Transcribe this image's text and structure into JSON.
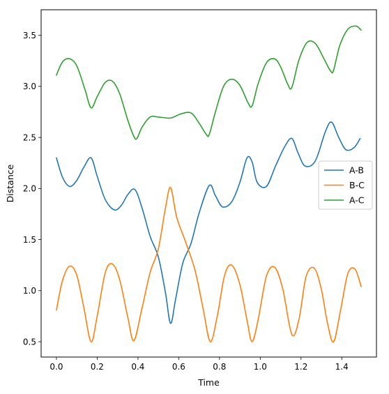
{
  "chart_data": {
    "type": "line",
    "title": "",
    "xlabel": "Time",
    "ylabel": "Distance",
    "xlim": [
      -0.075,
      1.57
    ],
    "ylim": [
      0.35,
      3.75
    ],
    "xticks": [
      0.0,
      0.2,
      0.4,
      0.6,
      0.8,
      1.0,
      1.2,
      1.4
    ],
    "xtick_labels": [
      "0.0",
      "0.2",
      "0.4",
      "0.6",
      "0.8",
      "1.0",
      "1.2",
      "1.4"
    ],
    "yticks": [
      0.5,
      1.0,
      1.5,
      2.0,
      2.5,
      3.0,
      3.5
    ],
    "ytick_labels": [
      "0.5",
      "1.0",
      "1.5",
      "2.0",
      "2.5",
      "3.0",
      "3.5"
    ],
    "grid": false,
    "legend_position": "center-right",
    "series": [
      {
        "name": "A-B",
        "color": "#1f77b4",
        "x": [
          0.0,
          0.03,
          0.065,
          0.1,
          0.135,
          0.17,
          0.2,
          0.24,
          0.285,
          0.32,
          0.35,
          0.385,
          0.42,
          0.46,
          0.5,
          0.535,
          0.56,
          0.585,
          0.62,
          0.66,
          0.7,
          0.75,
          0.78,
          0.815,
          0.86,
          0.9,
          0.935,
          0.96,
          0.985,
          1.03,
          1.075,
          1.12,
          1.155,
          1.185,
          1.22,
          1.27,
          1.32,
          1.35,
          1.385,
          1.42,
          1.46,
          1.49
        ],
        "y": [
          2.3,
          2.11,
          2.02,
          2.08,
          2.21,
          2.3,
          2.12,
          1.89,
          1.79,
          1.84,
          1.94,
          1.99,
          1.81,
          1.53,
          1.33,
          0.98,
          0.68,
          0.92,
          1.27,
          1.46,
          1.76,
          2.03,
          1.93,
          1.82,
          1.87,
          2.06,
          2.3,
          2.26,
          2.06,
          2.02,
          2.22,
          2.41,
          2.49,
          2.35,
          2.22,
          2.27,
          2.56,
          2.65,
          2.5,
          2.38,
          2.4,
          2.49
        ]
      },
      {
        "name": "B-C",
        "color": "#ff7f0e",
        "x": [
          0.0,
          0.03,
          0.065,
          0.1,
          0.135,
          0.17,
          0.2,
          0.24,
          0.275,
          0.31,
          0.35,
          0.38,
          0.42,
          0.46,
          0.5,
          0.535,
          0.56,
          0.59,
          0.635,
          0.68,
          0.72,
          0.755,
          0.79,
          0.825,
          0.86,
          0.9,
          0.935,
          0.96,
          0.99,
          1.03,
          1.07,
          1.11,
          1.155,
          1.19,
          1.225,
          1.265,
          1.3,
          1.33,
          1.36,
          1.395,
          1.43,
          1.465,
          1.495
        ],
        "y": [
          0.81,
          1.1,
          1.24,
          1.15,
          0.83,
          0.5,
          0.75,
          1.18,
          1.26,
          1.11,
          0.74,
          0.51,
          0.83,
          1.18,
          1.41,
          1.81,
          2.01,
          1.72,
          1.47,
          1.2,
          0.82,
          0.5,
          0.76,
          1.15,
          1.25,
          1.06,
          0.71,
          0.5,
          0.72,
          1.14,
          1.23,
          1.02,
          0.57,
          0.72,
          1.14,
          1.22,
          1.01,
          0.68,
          0.5,
          0.82,
          1.17,
          1.21,
          1.04
        ]
      },
      {
        "name": "A-C",
        "color": "#2ca02c",
        "x": [
          0.0,
          0.03,
          0.065,
          0.1,
          0.14,
          0.17,
          0.2,
          0.24,
          0.275,
          0.31,
          0.35,
          0.38,
          0.395,
          0.42,
          0.46,
          0.5,
          0.56,
          0.61,
          0.66,
          0.7,
          0.735,
          0.75,
          0.78,
          0.82,
          0.86,
          0.9,
          0.94,
          0.96,
          0.99,
          1.03,
          1.07,
          1.1,
          1.135,
          1.155,
          1.19,
          1.23,
          1.27,
          1.31,
          1.345,
          1.36,
          1.39,
          1.43,
          1.47,
          1.495
        ],
        "y": [
          3.11,
          3.24,
          3.27,
          3.2,
          2.97,
          2.79,
          2.9,
          3.04,
          3.05,
          2.93,
          2.67,
          2.51,
          2.49,
          2.6,
          2.7,
          2.7,
          2.69,
          2.73,
          2.74,
          2.64,
          2.53,
          2.53,
          2.75,
          3.0,
          3.07,
          3.01,
          2.84,
          2.81,
          3.03,
          3.23,
          3.27,
          3.19,
          3.02,
          2.99,
          3.26,
          3.43,
          3.42,
          3.28,
          3.15,
          3.16,
          3.4,
          3.56,
          3.59,
          3.55
        ]
      }
    ]
  }
}
